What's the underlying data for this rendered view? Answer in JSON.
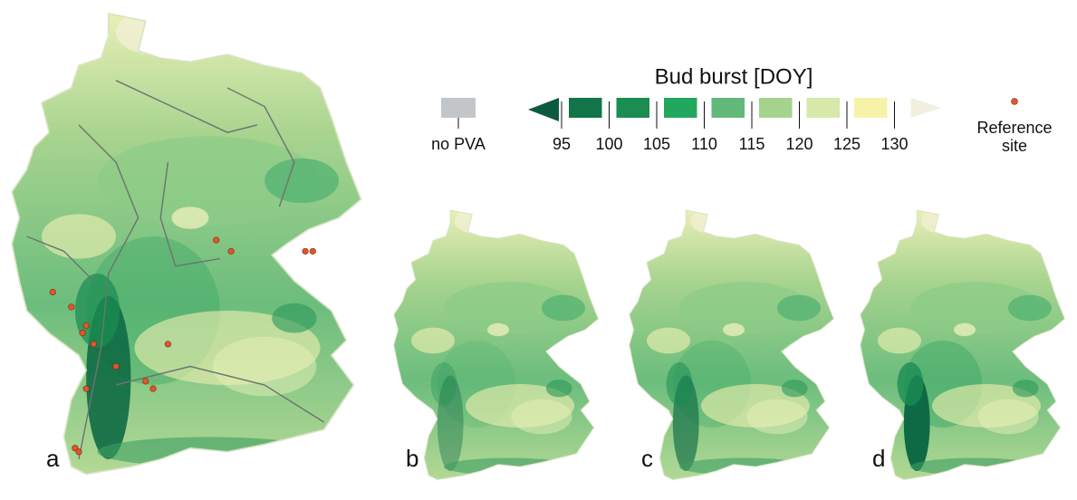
{
  "legend": {
    "title": "Bud burst [DOY]",
    "no_data_label": "no PVA",
    "no_data_color": "#c3c6c9",
    "ticks": [
      95,
      100,
      105,
      110,
      115,
      120,
      125,
      130
    ],
    "colors": [
      "#0b5a3e",
      "#117549",
      "#1b8c52",
      "#22a85e",
      "#62b979",
      "#a5d38e",
      "#d6e8aa",
      "#f6f2a8",
      "#f3efdf"
    ],
    "reference_site_lines": [
      "Reference",
      "site"
    ],
    "reference_site_color": "#e0552f"
  },
  "panels": [
    "a",
    "b",
    "c",
    "d"
  ]
}
